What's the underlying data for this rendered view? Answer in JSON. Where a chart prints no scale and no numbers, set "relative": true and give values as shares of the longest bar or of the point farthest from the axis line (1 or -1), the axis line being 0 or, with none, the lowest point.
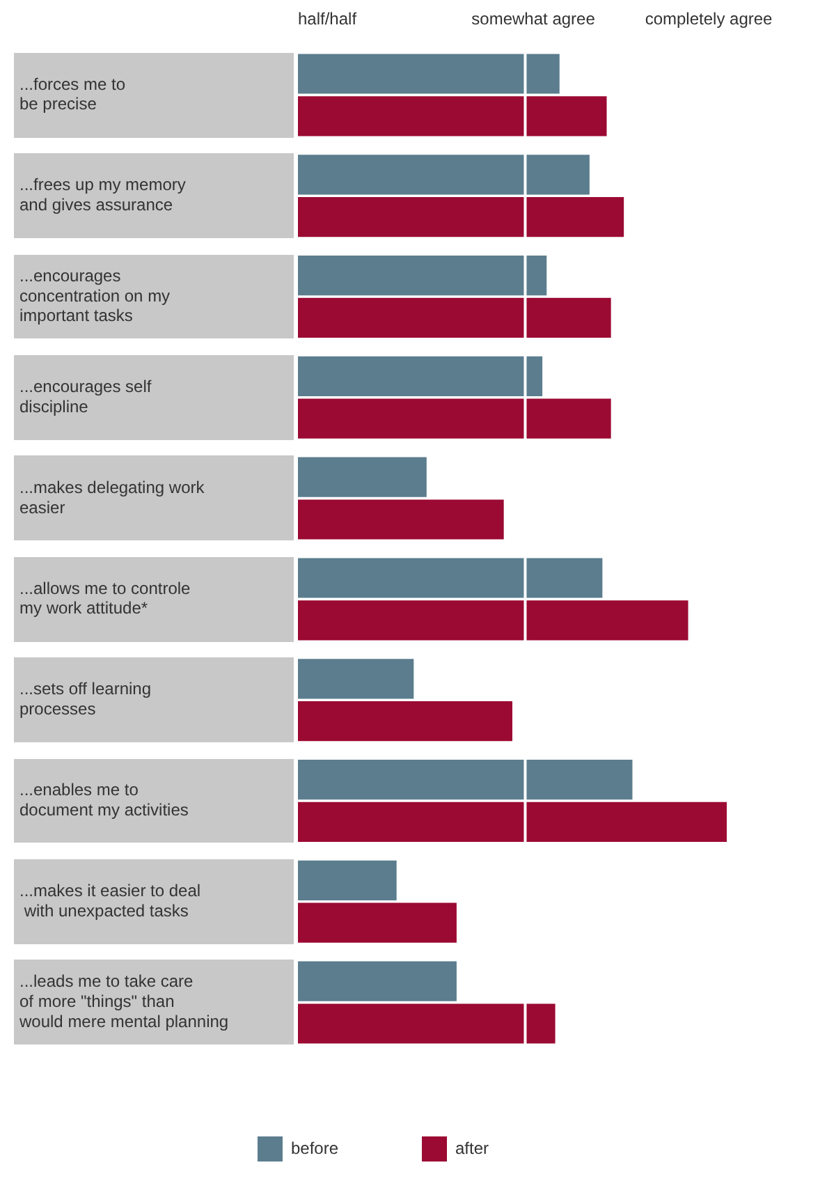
{
  "chart_data": {
    "type": "bar",
    "orientation": "horizontal",
    "relative": true,
    "categories": [
      "...forces me to\nbe precise",
      "...frees up my memory\nand gives assurance",
      "...encourages\nconcentration on my\nimportant tasks",
      "...encourages self\ndiscipline",
      "...makes delegating work\neasier",
      "...allows me to controle\nmy work attitude*",
      "...sets off learning\nprocesses",
      "...enables me to\ndocument my activities",
      "...makes it easier to deal\n with unexpacted tasks",
      "...leads me to take care\nof more \"things\" than\nwould mere mental planning"
    ],
    "series": [
      {
        "name": "before",
        "color": "#5b7d8e",
        "values": [
          0.61,
          0.68,
          0.58,
          0.57,
          0.3,
          0.71,
          0.27,
          0.78,
          0.23,
          0.37
        ]
      },
      {
        "name": "after",
        "color": "#9b0a33",
        "values": [
          0.72,
          0.76,
          0.73,
          0.73,
          0.48,
          0.91,
          0.5,
          1,
          0.37,
          0.6
        ]
      }
    ],
    "annotations": [
      "half/half",
      "somewhat agree",
      "completely agree"
    ],
    "ref_lines": [
      {
        "axis": "x",
        "value": 0.53,
        "color": "#ffffff"
      }
    ],
    "grid": false,
    "legend": "bottom"
  }
}
